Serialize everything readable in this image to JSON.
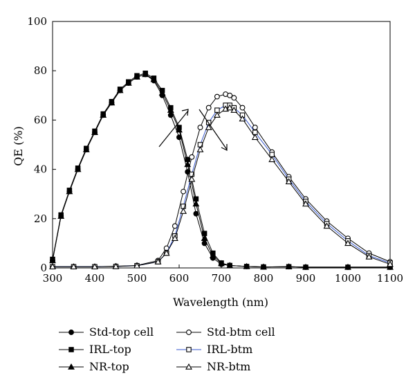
{
  "chart_data": {
    "type": "line",
    "xlabel": "Wavelength (nm)",
    "ylabel": "QE (%)",
    "xlim": [
      300,
      1100
    ],
    "ylim": [
      0,
      100
    ],
    "xticks": [
      300,
      400,
      500,
      600,
      700,
      800,
      900,
      1000,
      1100
    ],
    "yticks": [
      0,
      20,
      40,
      60,
      80,
      100
    ],
    "grid": false,
    "legend_position": "bottom",
    "series": [
      {
        "name": "Std-top cell",
        "marker": "circle",
        "filled": true,
        "color": "#000000",
        "x": [
          300,
          320,
          340,
          360,
          380,
          400,
          420,
          440,
          460,
          480,
          500,
          520,
          540,
          560,
          580,
          600,
          620,
          640,
          660,
          680,
          700,
          720,
          760,
          800,
          860,
          900,
          1000,
          1100
        ],
        "y": [
          3,
          21,
          31,
          40,
          48,
          55,
          62,
          67,
          72,
          75,
          77.5,
          78.5,
          76,
          70,
          62,
          53,
          39,
          22,
          10,
          4,
          1.5,
          1,
          0.6,
          0.4,
          0.5,
          0.3,
          0.3,
          0.3
        ]
      },
      {
        "name": "IRL-top",
        "marker": "square",
        "filled": true,
        "color": "#000000",
        "x": [
          300,
          320,
          340,
          360,
          380,
          400,
          420,
          440,
          460,
          480,
          500,
          520,
          540,
          560,
          580,
          600,
          620,
          640,
          660,
          680,
          700,
          720,
          760,
          800,
          860,
          900,
          1000,
          1100
        ],
        "y": [
          3.5,
          21.5,
          31.5,
          40.5,
          48.5,
          55.5,
          62.5,
          67.5,
          72.5,
          75.5,
          78,
          79,
          77,
          72,
          65,
          57,
          44,
          28,
          14,
          6,
          2,
          1,
          0.6,
          0.4,
          0.5,
          0.3,
          0.3,
          0.3
        ]
      },
      {
        "name": "NR-top",
        "marker": "triangle",
        "filled": true,
        "color": "#000000",
        "x": [
          300,
          320,
          340,
          360,
          380,
          400,
          420,
          440,
          460,
          480,
          500,
          520,
          540,
          560,
          580,
          600,
          620,
          640,
          660,
          680,
          700,
          720,
          760,
          800,
          860,
          900,
          1000,
          1100
        ],
        "y": [
          3,
          21,
          31,
          40,
          48,
          55,
          62,
          67,
          72,
          75,
          77.5,
          78.5,
          76.5,
          71,
          64,
          56,
          42,
          26,
          12,
          5,
          1.8,
          1,
          0.6,
          0.4,
          0.5,
          0.3,
          0.3,
          0.3
        ]
      },
      {
        "name": "Std-btm cell",
        "marker": "circle",
        "filled": false,
        "color": "#000000",
        "x": [
          300,
          350,
          400,
          450,
          500,
          550,
          570,
          590,
          610,
          630,
          650,
          670,
          690,
          710,
          720,
          730,
          750,
          780,
          820,
          860,
          900,
          950,
          1000,
          1050,
          1100
        ],
        "y": [
          0.5,
          0.5,
          0.5,
          0.7,
          1,
          3,
          8,
          17,
          31,
          45,
          57,
          65,
          69.5,
          70.5,
          70,
          69,
          65,
          57,
          47,
          37,
          28,
          19,
          12,
          6,
          2.5
        ]
      },
      {
        "name": "IRL-btm",
        "marker": "square",
        "filled": false,
        "color": "#3355cc",
        "x": [
          300,
          350,
          400,
          450,
          500,
          550,
          570,
          590,
          610,
          630,
          650,
          670,
          690,
          710,
          720,
          730,
          750,
          780,
          820,
          860,
          900,
          950,
          1000,
          1050,
          1100
        ],
        "y": [
          0.5,
          0.5,
          0.5,
          0.6,
          0.9,
          2.5,
          6,
          13,
          25,
          38,
          50,
          59,
          64,
          66,
          66,
          65,
          62,
          55,
          46,
          36,
          27,
          18,
          11,
          5,
          2
        ]
      },
      {
        "name": "NR-btm",
        "marker": "triangle",
        "filled": false,
        "color": "#000000",
        "x": [
          300,
          350,
          400,
          450,
          500,
          550,
          570,
          590,
          610,
          630,
          650,
          670,
          690,
          710,
          720,
          730,
          750,
          780,
          820,
          860,
          900,
          950,
          1000,
          1050,
          1100
        ],
        "y": [
          0.5,
          0.5,
          0.5,
          0.6,
          0.9,
          2.5,
          6,
          12,
          23,
          36,
          48,
          57,
          62,
          64.5,
          65,
          64,
          60.5,
          53,
          44,
          35,
          26,
          17,
          10,
          4.5,
          1.5
        ]
      }
    ]
  }
}
